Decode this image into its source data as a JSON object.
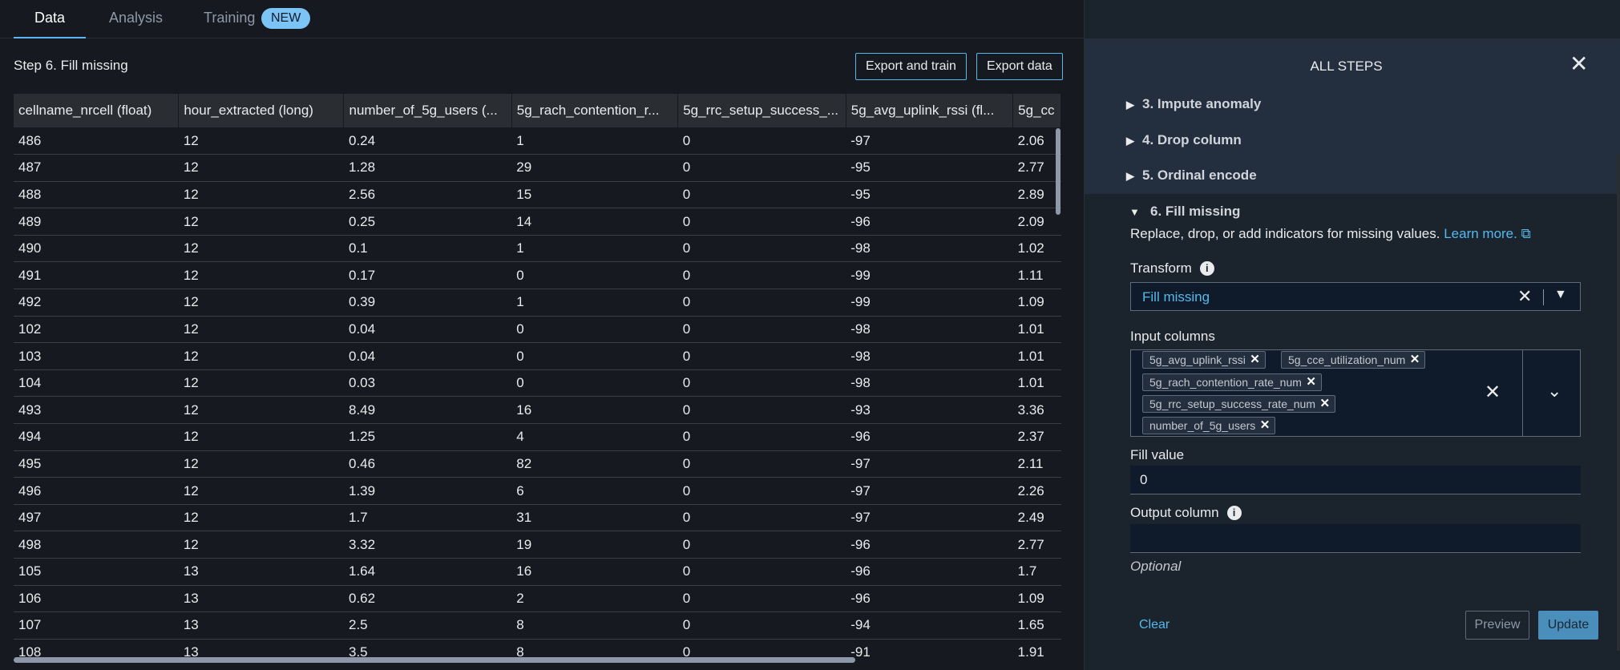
{
  "tabs": [
    {
      "label": "Data"
    },
    {
      "label": "Analysis"
    },
    {
      "label": "Training",
      "badge": "NEW"
    }
  ],
  "step_title": "Step 6. Fill missing",
  "buttons": {
    "export_train": "Export and train",
    "export_data": "Export data"
  },
  "table": {
    "headers": [
      "cellname_nrcell (float)",
      "hour_extracted (long)",
      "number_of_5g_users (...",
      "5g_rach_contention_r...",
      "5g_rrc_setup_success_...",
      "5g_avg_uplink_rssi (fl...",
      "5g_cc"
    ],
    "rows": [
      [
        "486",
        "12",
        "0.24",
        "1",
        "0",
        "-97",
        "2.06"
      ],
      [
        "487",
        "12",
        "1.28",
        "29",
        "0",
        "-95",
        "2.77"
      ],
      [
        "488",
        "12",
        "2.56",
        "15",
        "0",
        "-95",
        "2.89"
      ],
      [
        "489",
        "12",
        "0.25",
        "14",
        "0",
        "-96",
        "2.09"
      ],
      [
        "490",
        "12",
        "0.1",
        "1",
        "0",
        "-98",
        "1.02"
      ],
      [
        "491",
        "12",
        "0.17",
        "0",
        "0",
        "-99",
        "1.11"
      ],
      [
        "492",
        "12",
        "0.39",
        "1",
        "0",
        "-99",
        "1.09"
      ],
      [
        "102",
        "12",
        "0.04",
        "0",
        "0",
        "-98",
        "1.01"
      ],
      [
        "103",
        "12",
        "0.04",
        "0",
        "0",
        "-98",
        "1.01"
      ],
      [
        "104",
        "12",
        "0.03",
        "0",
        "0",
        "-98",
        "1.01"
      ],
      [
        "493",
        "12",
        "8.49",
        "16",
        "0",
        "-93",
        "3.36"
      ],
      [
        "494",
        "12",
        "1.25",
        "4",
        "0",
        "-96",
        "2.37"
      ],
      [
        "495",
        "12",
        "0.46",
        "82",
        "0",
        "-97",
        "2.11"
      ],
      [
        "496",
        "12",
        "1.39",
        "6",
        "0",
        "-97",
        "2.26"
      ],
      [
        "497",
        "12",
        "1.7",
        "31",
        "0",
        "-97",
        "2.49"
      ],
      [
        "498",
        "12",
        "3.32",
        "19",
        "0",
        "-96",
        "2.77"
      ],
      [
        "105",
        "13",
        "1.64",
        "16",
        "0",
        "-96",
        "1.7"
      ],
      [
        "106",
        "13",
        "0.62",
        "2",
        "0",
        "-96",
        "1.09"
      ],
      [
        "107",
        "13",
        "2.5",
        "8",
        "0",
        "-94",
        "1.65"
      ],
      [
        "108",
        "13",
        "3.5",
        "8",
        "0",
        "-91",
        "1.91"
      ]
    ]
  },
  "panel": {
    "title": "ALL STEPS",
    "steps": [
      {
        "label": "3. Impute anomaly"
      },
      {
        "label": "4. Drop column"
      },
      {
        "label": "5. Ordinal encode"
      },
      {
        "label": "6. Fill missing"
      }
    ],
    "description": "Replace, drop, or add indicators for missing values.",
    "learn_more": "Learn more.",
    "transform_label": "Transform",
    "transform_value": "Fill missing",
    "input_columns_label": "Input columns",
    "input_columns": [
      "5g_avg_uplink_rssi",
      "5g_cce_utilization_num",
      "5g_rach_contention_rate_num",
      "5g_rrc_setup_success_rate_num",
      "number_of_5g_users"
    ],
    "fill_value_label": "Fill value",
    "fill_value": "0",
    "output_column_label": "Output column",
    "output_column_value": "",
    "optional": "Optional",
    "clear": "Clear",
    "preview": "Preview",
    "update": "Update"
  }
}
